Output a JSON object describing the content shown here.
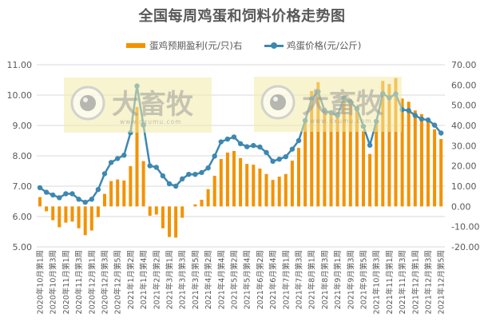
{
  "chart_data": {
    "type": "bar+line",
    "title": "全国每周鸡蛋和饲料价格走势图",
    "legend_position": "top",
    "grid": true,
    "colors": {
      "bar": "#F39200",
      "line": "#3D88B0",
      "grid": "#D9D9D9",
      "text": "#595959",
      "watermark_bg": "#F2EBA8"
    },
    "series": [
      {
        "name": "蛋鸡预期盈利(元/只)右",
        "type": "bar",
        "axis": "right",
        "values": [
          4.6,
          -2.4,
          -6.8,
          -10.3,
          -8.0,
          -7.5,
          -10.8,
          -14.2,
          -11.9,
          -5.3,
          6.2,
          12.5,
          13.3,
          12.8,
          19.9,
          49.1,
          22.4,
          -4.6,
          -4.0,
          -10.8,
          -15.1,
          -15.4,
          -5.6,
          0.0,
          1.0,
          3.3,
          8.5,
          15.1,
          23.4,
          26.6,
          27.4,
          23.9,
          21.0,
          20.6,
          18.7,
          16.0,
          13.1,
          14.7,
          16.0,
          22.6,
          28.9,
          42.8,
          57.0,
          61.4,
          48.8,
          47.0,
          45.7,
          55.0,
          53.0,
          49.3,
          37.5,
          25.9,
          43.1,
          62.0,
          60.5,
          63.4,
          53.3,
          51.7,
          47.4,
          45.6,
          43.1,
          38.1,
          33.3
        ]
      },
      {
        "name": "鸡蛋价格(元/公斤)",
        "type": "line",
        "axis": "left",
        "values": [
          6.95,
          6.8,
          6.71,
          6.62,
          6.75,
          6.75,
          6.57,
          6.47,
          6.57,
          6.89,
          7.41,
          7.78,
          7.91,
          8.02,
          8.76,
          10.3,
          9.01,
          7.67,
          7.62,
          7.34,
          7.08,
          7.0,
          7.24,
          7.39,
          7.39,
          7.45,
          7.6,
          7.99,
          8.46,
          8.55,
          8.62,
          8.4,
          8.3,
          8.34,
          8.29,
          8.11,
          7.82,
          7.89,
          7.97,
          8.22,
          8.5,
          9.16,
          9.88,
          10.11,
          9.49,
          9.42,
          9.33,
          9.9,
          9.77,
          9.55,
          8.97,
          8.35,
          9.13,
          10.05,
          9.91,
          10.04,
          9.52,
          9.49,
          9.33,
          9.21,
          9.18,
          9.01,
          8.75
        ]
      }
    ],
    "x_tick_labels": [
      "2020年10月第1周",
      "2020年10月第3周",
      "2020年11月第1周",
      "2020年11月第3周",
      "2020年12月第1周",
      "2020年12月第3周",
      "2020年12月第5周",
      "2021年1月第2周",
      "2021年1月第4周",
      "2021年2月第2周",
      "2021年3月第1周",
      "2021年3月第3周",
      "2021年3月第5周",
      "2021年4月第2周",
      "2021年4月第4周",
      "2021年5月第2周",
      "2021年5月第4周",
      "2021年6月第2周",
      "2021年6月第4周",
      "2021年7月第1周",
      "2021年7月第3周",
      "2021年8月第1周",
      "2021年8月第3周",
      "2021年9月第1周",
      "2021年9月第3周",
      "2021年9月第5周",
      "2021年10月第3周",
      "2021年11月第1周",
      "2021年11月第3周",
      "2021年12月第1周",
      "2021年12月第3周",
      "2021年12月第5周"
    ],
    "x_tick_every": 2,
    "point_count": 63,
    "left_axis": {
      "label": "",
      "ylim": [
        5.0,
        11.0
      ],
      "ticks": [
        "5.00",
        "6.00",
        "7.00",
        "8.00",
        "9.00",
        "10.00",
        "11.00"
      ]
    },
    "right_axis": {
      "label": "",
      "ylim": [
        -20.0,
        70.0
      ],
      "ticks": [
        "-20.00",
        "-10.00",
        "0.00",
        "10.00",
        "20.00",
        "30.00",
        "40.00",
        "50.00",
        "60.00",
        "70.00"
      ]
    },
    "xlabel": "",
    "ylabel": ""
  },
  "watermark": {
    "brand": "大畜牧",
    "url": "www.dxumu.com"
  }
}
